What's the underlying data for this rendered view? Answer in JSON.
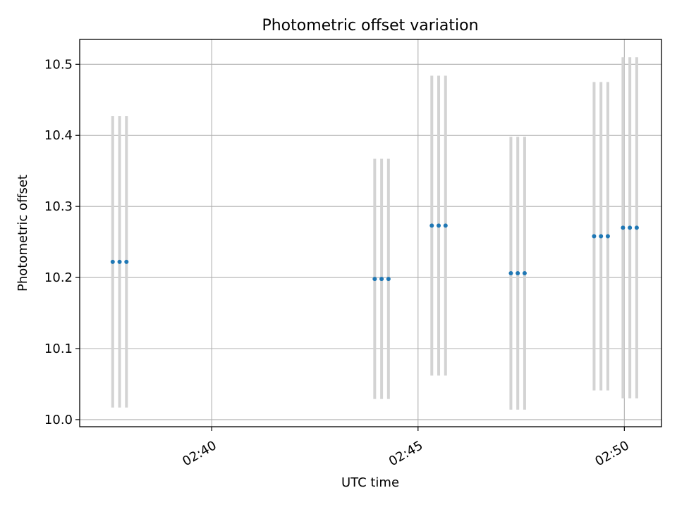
{
  "chart_data": {
    "type": "scatter",
    "title": "Photometric offset variation",
    "xlabel": "UTC time",
    "ylabel": "Photometric offset",
    "xlim": [
      "02:36:48",
      "02:50:54"
    ],
    "ylim": [
      9.99,
      10.535
    ],
    "x_ticks": [
      "02:40",
      "02:45",
      "02:50"
    ],
    "y_ticks": [
      "10.0",
      "10.1",
      "10.2",
      "10.3",
      "10.4",
      "10.5"
    ],
    "grid": true,
    "error_bar_color": "#d3d3d3",
    "marker_color": "#1f77b4",
    "series": [
      {
        "x": [
          "02:37:36",
          "02:37:46",
          "02:37:56",
          "02:43:57",
          "02:44:07",
          "02:44:17",
          "02:45:20",
          "02:45:30",
          "02:45:40",
          "02:47:15",
          "02:47:25",
          "02:47:35",
          "02:49:16",
          "02:49:26",
          "02:49:36",
          "02:49:58",
          "02:50:08",
          "02:50:18"
        ],
        "y": [
          10.222,
          10.222,
          10.222,
          10.198,
          10.198,
          10.198,
          10.273,
          10.273,
          10.273,
          10.206,
          10.206,
          10.206,
          10.258,
          10.258,
          10.258,
          10.27,
          10.27,
          10.27
        ],
        "yerr": [
          0.205,
          0.205,
          0.205,
          0.169,
          0.169,
          0.169,
          0.211,
          0.211,
          0.211,
          0.192,
          0.192,
          0.192,
          0.217,
          0.217,
          0.217,
          0.24,
          0.24,
          0.24
        ]
      }
    ]
  }
}
